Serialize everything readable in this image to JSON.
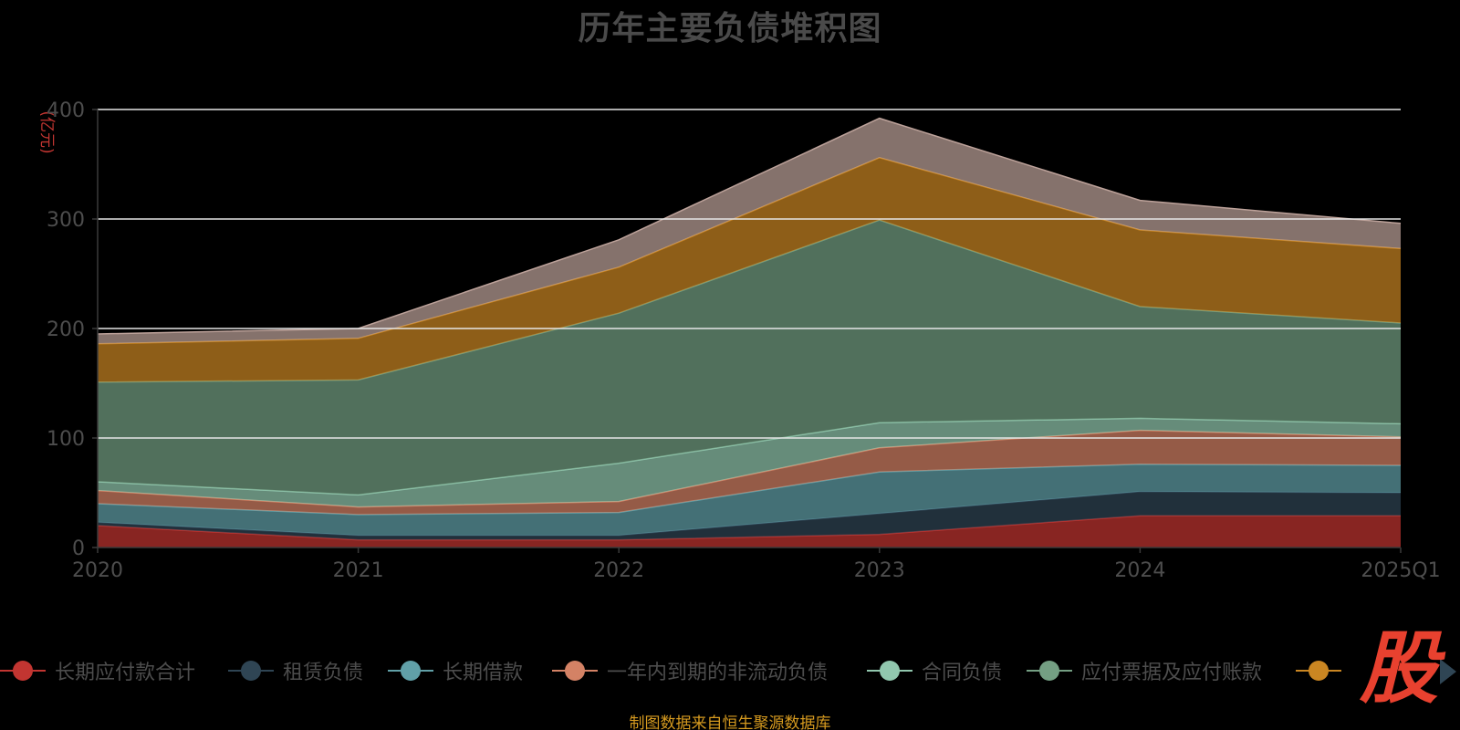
{
  "chart_data": {
    "type": "area",
    "stacked": true,
    "title": "历年主要负债堆积图",
    "ylabel": "(亿元)",
    "xlabel": "",
    "categories": [
      "2020",
      "2021",
      "2022",
      "2023",
      "2024",
      "2025Q1"
    ],
    "ylim": [
      0,
      400
    ],
    "yticks": [
      0,
      100,
      200,
      300,
      400
    ],
    "grid": true,
    "legend_position": "bottom",
    "series": [
      {
        "name": "长期应付款合计",
        "color": "#c23531",
        "legend_color": "#c23531",
        "values": [
          20,
          7,
          7,
          12,
          29,
          29
        ]
      },
      {
        "name": "租赁负债",
        "color": "#2f4554",
        "legend_color": "#2f4554",
        "values": [
          3,
          4,
          4,
          19,
          22,
          21
        ]
      },
      {
        "name": "长期借款",
        "color": "#61a0a8",
        "legend_color": "#61a0a8",
        "values": [
          17,
          19,
          21,
          38,
          25,
          25
        ]
      },
      {
        "name": "一年内到期的非流动负债",
        "color": "#d48265",
        "legend_color": "#d48265",
        "values": [
          12,
          7,
          10,
          22,
          31,
          26
        ]
      },
      {
        "name": "合同负债",
        "color": "#91c7ae",
        "legend_color": "#91c7ae",
        "values": [
          8,
          11,
          35,
          23,
          11,
          12
        ]
      },
      {
        "name": "应付票据及应付账款",
        "color": "#749f83",
        "legend_color": "#749f83",
        "values": [
          91,
          105,
          137,
          185,
          102,
          92
        ]
      },
      {
        "name": "",
        "color": "#ca8622",
        "legend_color": "#ca8622",
        "values": [
          35,
          38,
          42,
          57,
          70,
          68
        ]
      },
      {
        "name": "",
        "color": "#bda29a",
        "values": [
          9,
          9,
          25,
          36,
          27,
          23
        ]
      }
    ]
  },
  "legend_next_icon": "triangle-right-icon",
  "watermark": "股",
  "source_note": "制图数据来自恒生聚源数据库"
}
